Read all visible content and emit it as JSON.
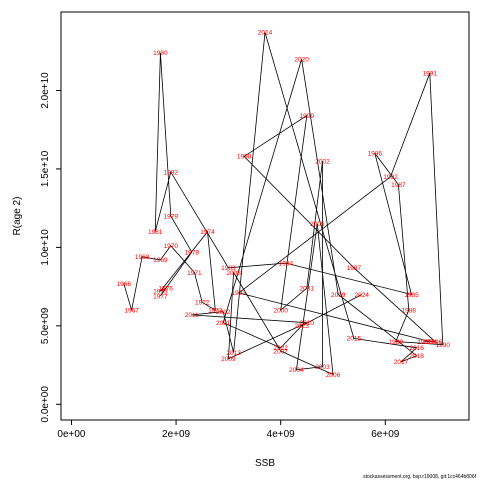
{
  "chart_data": {
    "type": "line",
    "xlabel": "SSB",
    "ylabel": "R(age 2)",
    "xlim": [
      -200000000.0,
      7600000000.0
    ],
    "ylim": [
      -1000000000.0,
      25000000000.0
    ],
    "x_ticks": [
      0,
      2000000000.0,
      4000000000.0,
      6000000000.0
    ],
    "x_tick_labels": [
      "0e+00",
      "2e+09",
      "4e+09",
      "6e+09"
    ],
    "y_ticks": [
      0,
      5000000000.0,
      10000000000.0,
      15000000000.0,
      20000000000.0
    ],
    "y_tick_labels": [
      "0.0e+00",
      "5.0e+09",
      "1.0e+10",
      "1.5e+10",
      "2.0e+10"
    ],
    "grid": false,
    "footer_text": "stockassessment.org, bsp.r19008, git:1cc464b806f",
    "points": [
      {
        "year": "1966",
        "x": 1000000000.0,
        "y": 7700000000.0
      },
      {
        "year": "1967",
        "x": 1150000000.0,
        "y": 6000000000.0
      },
      {
        "year": "1968",
        "x": 1350000000.0,
        "y": 9400000000.0
      },
      {
        "year": "1969",
        "x": 1700000000.0,
        "y": 9200000000.0
      },
      {
        "year": "1970",
        "x": 1900000000.0,
        "y": 10100000000.0
      },
      {
        "year": "1971",
        "x": 2350000000.0,
        "y": 8400000000.0
      },
      {
        "year": "1972",
        "x": 2500000000.0,
        "y": 6500000000.0
      },
      {
        "year": "1973",
        "x": 2750000000.0,
        "y": 6000000000.0
      },
      {
        "year": "1974",
        "x": 2600000000.0,
        "y": 11000000000.0
      },
      {
        "year": "1975",
        "x": 1700000000.0,
        "y": 7200000000.0
      },
      {
        "year": "1976",
        "x": 1800000000.0,
        "y": 7400000000.0
      },
      {
        "year": "1977",
        "x": 1700000000.0,
        "y": 6900000000.0
      },
      {
        "year": "1978",
        "x": 2300000000.0,
        "y": 9700000000.0
      },
      {
        "year": "1979",
        "x": 1900000000.0,
        "y": 12000000000.0
      },
      {
        "year": "1980",
        "x": 1700000000.0,
        "y": 22400000000.0
      },
      {
        "year": "1981",
        "x": 1600000000.0,
        "y": 11000000000.0
      },
      {
        "year": "1982",
        "x": 1900000000.0,
        "y": 14800000000.0
      },
      {
        "year": "1983",
        "x": 3000000000.0,
        "y": 8700000000.0
      },
      {
        "year": "1984",
        "x": 4100000000.0,
        "y": 9000000000.0
      },
      {
        "year": "1985",
        "x": 6500000000.0,
        "y": 7000000000.0
      },
      {
        "year": "1986",
        "x": 5800000000.0,
        "y": 16000000000.0
      },
      {
        "year": "1987",
        "x": 6250000000.0,
        "y": 14000000000.0
      },
      {
        "year": "1988",
        "x": 6450000000.0,
        "y": 6000000000.0
      },
      {
        "year": "1989",
        "x": 6200000000.0,
        "y": 4000000000.0
      },
      {
        "year": "1990",
        "x": 7100000000.0,
        "y": 3800000000.0
      },
      {
        "year": "1991",
        "x": 6850000000.0,
        "y": 21100000000.0
      },
      {
        "year": "1992",
        "x": 6100000000.0,
        "y": 14500000000.0
      },
      {
        "year": "1993",
        "x": 3200000000.0,
        "y": 7100000000.0
      },
      {
        "year": "1994",
        "x": 6850000000.0,
        "y": 4000000000.0
      },
      {
        "year": "1995",
        "x": 6750000000.0,
        "y": 4000000000.0
      },
      {
        "year": "1996",
        "x": 6950000000.0,
        "y": 4000000000.0
      },
      {
        "year": "1997",
        "x": 5400000000.0,
        "y": 8700000000.0
      },
      {
        "year": "1998",
        "x": 3300000000.0,
        "y": 15800000000.0
      },
      {
        "year": "1999",
        "x": 4500000000.0,
        "y": 18400000000.0
      },
      {
        "year": "2000",
        "x": 4000000000.0,
        "y": 6000000000.0
      },
      {
        "year": "2001",
        "x": 4500000000.0,
        "y": 7400000000.0
      },
      {
        "year": "2002",
        "x": 4800000000.0,
        "y": 15500000000.0
      },
      {
        "year": "2003",
        "x": 4800000000.0,
        "y": 2400000000.0
      },
      {
        "year": "2004",
        "x": 4300000000.0,
        "y": 2200000000.0
      },
      {
        "year": "2005",
        "x": 4700000000.0,
        "y": 11500000000.0
      },
      {
        "year": "2006",
        "x": 5000000000.0,
        "y": 1900000000.0
      },
      {
        "year": "2007",
        "x": 4000000000.0,
        "y": 3400000000.0
      },
      {
        "year": "2008",
        "x": 3100000000.0,
        "y": 8400000000.0
      },
      {
        "year": "2009",
        "x": 3000000000.0,
        "y": 2900000000.0
      },
      {
        "year": "2010",
        "x": 4500000000.0,
        "y": 5200000000.0
      },
      {
        "year": "2011",
        "x": 2300000000.0,
        "y": 5700000000.0
      },
      {
        "year": "2012",
        "x": 2900000000.0,
        "y": 5900000000.0
      },
      {
        "year": "2013",
        "x": 3100000000.0,
        "y": 3300000000.0
      },
      {
        "year": "2014",
        "x": 3700000000.0,
        "y": 23700000000.0
      },
      {
        "year": "2015",
        "x": 5400000000.0,
        "y": 4200000000.0
      },
      {
        "year": "2016",
        "x": 6600000000.0,
        "y": 3600000000.0
      },
      {
        "year": "2017",
        "x": 6300000000.0,
        "y": 2700000000.0
      },
      {
        "year": "2018",
        "x": 6600000000.0,
        "y": 3100000000.0
      },
      {
        "year": "2019",
        "x": 5100000000.0,
        "y": 7000000000.0
      },
      {
        "year": "2020",
        "x": 4400000000.0,
        "y": 22000000000.0
      },
      {
        "year": "2021",
        "x": 2900000000.0,
        "y": 5200000000.0
      },
      {
        "year": "2022",
        "x": 4000000000.0,
        "y": 3600000000.0
      },
      {
        "year": "2023",
        "x": 4400000000.0,
        "y": 5000000000.0
      },
      {
        "year": "2024",
        "x": 5550000000.0,
        "y": 7000000000.0
      }
    ]
  }
}
